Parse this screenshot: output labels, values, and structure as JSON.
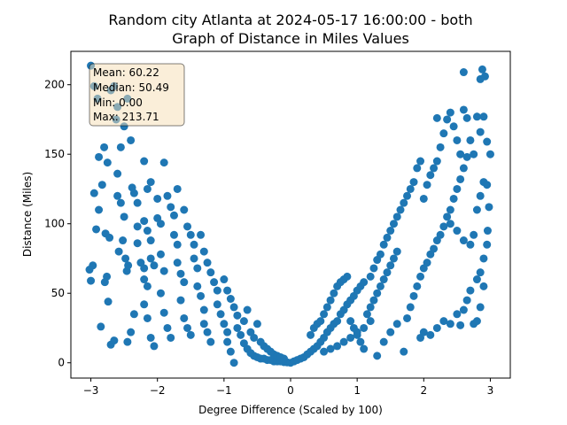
{
  "chart_data": {
    "type": "scatter",
    "title_line1": "Random city Atlanta at 2024-05-17 16:00:00  - both",
    "title_line2": "Graph of Distance in Miles Values",
    "xlabel": "Degree Difference (Scaled by 100)",
    "ylabel": "Distance (Miles)",
    "xlim": [
      -3.3,
      3.3
    ],
    "ylim": [
      -11,
      224
    ],
    "xticks": [
      -3,
      -2,
      -1,
      0,
      1,
      2,
      3
    ],
    "yticks": [
      0,
      50,
      100,
      150,
      200
    ],
    "grid": false,
    "color": "#1f77b4",
    "stats": {
      "mean": "Mean: 60.22",
      "median": "Median: 50.49",
      "min": "Min: 0.00",
      "max": "Max: 213.71"
    },
    "points": [
      [
        -3.0,
        213.7
      ],
      [
        -2.95,
        199
      ],
      [
        -2.9,
        190
      ],
      [
        -2.92,
        96
      ],
      [
        -2.97,
        70
      ],
      [
        -3.02,
        67
      ],
      [
        -3.0,
        59
      ],
      [
        -2.85,
        26
      ],
      [
        -2.8,
        155
      ],
      [
        -2.75,
        144
      ],
      [
        -2.7,
        196
      ],
      [
        -2.65,
        199
      ],
      [
        -2.6,
        184
      ],
      [
        -2.62,
        175
      ],
      [
        -2.88,
        148
      ],
      [
        -2.88,
        110
      ],
      [
        -2.95,
        122
      ],
      [
        -2.83,
        128
      ],
      [
        -2.78,
        93
      ],
      [
        -2.72,
        90
      ],
      [
        -2.76,
        62
      ],
      [
        -2.79,
        58
      ],
      [
        -2.74,
        44
      ],
      [
        -2.7,
        13
      ],
      [
        -2.65,
        16
      ],
      [
        -2.6,
        136
      ],
      [
        -2.55,
        155
      ],
      [
        -2.5,
        170
      ],
      [
        -2.45,
        190
      ],
      [
        -2.58,
        80
      ],
      [
        -2.52,
        88
      ],
      [
        -2.48,
        75
      ],
      [
        -2.46,
        66
      ],
      [
        -2.44,
        70
      ],
      [
        -2.6,
        120
      ],
      [
        -2.55,
        115
      ],
      [
        -2.5,
        105
      ],
      [
        -2.4,
        160
      ],
      [
        -2.35,
        122
      ],
      [
        -2.3,
        98
      ],
      [
        -2.3,
        86
      ],
      [
        -2.25,
        72
      ],
      [
        -2.2,
        68
      ],
      [
        -2.2,
        60
      ],
      [
        -2.35,
        35
      ],
      [
        -2.4,
        22
      ],
      [
        -2.45,
        15
      ],
      [
        -2.38,
        126
      ],
      [
        -2.3,
        115
      ],
      [
        -2.2,
        102
      ],
      [
        -2.15,
        95
      ],
      [
        -2.1,
        88
      ],
      [
        -2.1,
        75
      ],
      [
        -2.05,
        70
      ],
      [
        -2.15,
        55
      ],
      [
        -2.2,
        42
      ],
      [
        -2.15,
        32
      ],
      [
        -2.1,
        18
      ],
      [
        -2.05,
        12
      ],
      [
        -2.2,
        145
      ],
      [
        -2.15,
        125
      ],
      [
        -2.1,
        130
      ],
      [
        -2.0,
        118
      ],
      [
        -2.0,
        104
      ],
      [
        -1.95,
        100
      ],
      [
        -1.95,
        78
      ],
      [
        -1.9,
        66
      ],
      [
        -1.95,
        50
      ],
      [
        -1.9,
        36
      ],
      [
        -1.85,
        25
      ],
      [
        -1.8,
        18
      ],
      [
        -1.9,
        144
      ],
      [
        -1.85,
        120
      ],
      [
        -1.8,
        112
      ],
      [
        -1.75,
        106
      ],
      [
        -1.75,
        92
      ],
      [
        -1.7,
        85
      ],
      [
        -1.7,
        72
      ],
      [
        -1.65,
        64
      ],
      [
        -1.6,
        58
      ],
      [
        -1.65,
        45
      ],
      [
        -1.6,
        32
      ],
      [
        -1.55,
        25
      ],
      [
        -1.5,
        20
      ],
      [
        -1.7,
        125
      ],
      [
        -1.6,
        110
      ],
      [
        -1.55,
        98
      ],
      [
        -1.5,
        92
      ],
      [
        -1.45,
        85
      ],
      [
        -1.45,
        75
      ],
      [
        -1.4,
        68
      ],
      [
        -1.4,
        55
      ],
      [
        -1.35,
        48
      ],
      [
        -1.3,
        38
      ],
      [
        -1.3,
        28
      ],
      [
        -1.25,
        22
      ],
      [
        -1.2,
        15
      ],
      [
        -1.35,
        92
      ],
      [
        -1.3,
        80
      ],
      [
        -1.25,
        72
      ],
      [
        -1.2,
        65
      ],
      [
        -1.15,
        58
      ],
      [
        -1.1,
        52
      ],
      [
        -1.1,
        42
      ],
      [
        -1.05,
        35
      ],
      [
        -1.0,
        28
      ],
      [
        -0.95,
        22
      ],
      [
        -0.95,
        15
      ],
      [
        -0.9,
        8
      ],
      [
        -1.0,
        60
      ],
      [
        -0.95,
        52
      ],
      [
        -0.9,
        46
      ],
      [
        -0.85,
        40
      ],
      [
        -0.8,
        34
      ],
      [
        -0.8,
        25
      ],
      [
        -0.75,
        20
      ],
      [
        -0.7,
        14
      ],
      [
        -0.65,
        10
      ],
      [
        -0.6,
        7
      ],
      [
        -0.55,
        5
      ],
      [
        -0.5,
        4
      ],
      [
        -0.45,
        3
      ],
      [
        -0.4,
        3
      ],
      [
        -0.35,
        2
      ],
      [
        -0.3,
        2
      ],
      [
        -0.25,
        1
      ],
      [
        -0.2,
        1
      ],
      [
        -0.15,
        1
      ],
      [
        -0.1,
        0.5
      ],
      [
        -0.05,
        0.3
      ],
      [
        -0.85,
        0
      ],
      [
        -0.7,
        30
      ],
      [
        -0.65,
        38
      ],
      [
        -0.6,
        22
      ],
      [
        -0.55,
        18
      ],
      [
        -0.5,
        28
      ],
      [
        -0.45,
        15
      ],
      [
        -0.4,
        12
      ],
      [
        -0.35,
        10
      ],
      [
        -0.3,
        8
      ],
      [
        -0.25,
        6
      ],
      [
        -0.2,
        5
      ],
      [
        -0.15,
        4
      ],
      [
        -0.1,
        3
      ],
      [
        0.0,
        0
      ],
      [
        0.05,
        1
      ],
      [
        0.1,
        2
      ],
      [
        0.15,
        3
      ],
      [
        0.2,
        4
      ],
      [
        0.25,
        6
      ],
      [
        0.3,
        8
      ],
      [
        0.35,
        10
      ],
      [
        0.4,
        12
      ],
      [
        0.45,
        15
      ],
      [
        0.5,
        18
      ],
      [
        0.55,
        22
      ],
      [
        0.6,
        25
      ],
      [
        0.65,
        28
      ],
      [
        0.7,
        30
      ],
      [
        0.75,
        35
      ],
      [
        0.8,
        38
      ],
      [
        0.85,
        42
      ],
      [
        0.9,
        45
      ],
      [
        0.95,
        48
      ],
      [
        1.0,
        52
      ],
      [
        1.05,
        55
      ],
      [
        1.1,
        58
      ],
      [
        0.3,
        20
      ],
      [
        0.35,
        25
      ],
      [
        0.4,
        28
      ],
      [
        0.45,
        30
      ],
      [
        0.5,
        35
      ],
      [
        0.55,
        40
      ],
      [
        0.6,
        45
      ],
      [
        0.65,
        50
      ],
      [
        0.7,
        55
      ],
      [
        0.75,
        58
      ],
      [
        0.8,
        60
      ],
      [
        0.85,
        62
      ],
      [
        0.9,
        30
      ],
      [
        0.95,
        25
      ],
      [
        1.0,
        20
      ],
      [
        1.05,
        15
      ],
      [
        1.1,
        10
      ],
      [
        0.5,
        8
      ],
      [
        0.6,
        10
      ],
      [
        0.7,
        12
      ],
      [
        0.8,
        15
      ],
      [
        0.9,
        18
      ],
      [
        1.0,
        22
      ],
      [
        1.1,
        25
      ],
      [
        1.15,
        35
      ],
      [
        1.2,
        40
      ],
      [
        1.25,
        45
      ],
      [
        1.3,
        50
      ],
      [
        1.35,
        55
      ],
      [
        1.4,
        60
      ],
      [
        1.45,
        65
      ],
      [
        1.5,
        70
      ],
      [
        1.55,
        75
      ],
      [
        1.6,
        80
      ],
      [
        1.2,
        62
      ],
      [
        1.25,
        68
      ],
      [
        1.3,
        74
      ],
      [
        1.35,
        78
      ],
      [
        1.4,
        85
      ],
      [
        1.45,
        90
      ],
      [
        1.5,
        95
      ],
      [
        1.55,
        100
      ],
      [
        1.6,
        105
      ],
      [
        1.65,
        110
      ],
      [
        1.7,
        115
      ],
      [
        1.75,
        120
      ],
      [
        1.8,
        125
      ],
      [
        1.85,
        130
      ],
      [
        1.9,
        140
      ],
      [
        1.95,
        145
      ],
      [
        1.2,
        30
      ],
      [
        1.3,
        5
      ],
      [
        1.4,
        15
      ],
      [
        1.5,
        22
      ],
      [
        1.6,
        28
      ],
      [
        1.7,
        8
      ],
      [
        1.75,
        32
      ],
      [
        1.8,
        40
      ],
      [
        1.85,
        48
      ],
      [
        1.9,
        55
      ],
      [
        1.95,
        62
      ],
      [
        2.0,
        68
      ],
      [
        2.05,
        72
      ],
      [
        2.1,
        78
      ],
      [
        2.15,
        82
      ],
      [
        2.2,
        88
      ],
      [
        2.25,
        92
      ],
      [
        2.3,
        98
      ],
      [
        2.35,
        105
      ],
      [
        2.4,
        110
      ],
      [
        2.45,
        118
      ],
      [
        2.5,
        125
      ],
      [
        2.55,
        132
      ],
      [
        2.6,
        140
      ],
      [
        2.65,
        148
      ],
      [
        1.95,
        18
      ],
      [
        2.0,
        22
      ],
      [
        2.1,
        20
      ],
      [
        2.2,
        25
      ],
      [
        2.3,
        30
      ],
      [
        2.4,
        28
      ],
      [
        2.5,
        35
      ],
      [
        2.55,
        27
      ],
      [
        2.6,
        38
      ],
      [
        2.65,
        45
      ],
      [
        2.7,
        52
      ],
      [
        2.75,
        28
      ],
      [
        2.8,
        60
      ],
      [
        2.85,
        65
      ],
      [
        2.9,
        75
      ],
      [
        2.95,
        85
      ],
      [
        2.2,
        145
      ],
      [
        2.25,
        155
      ],
      [
        2.3,
        165
      ],
      [
        2.35,
        175
      ],
      [
        2.4,
        180
      ],
      [
        2.45,
        170
      ],
      [
        2.5,
        160
      ],
      [
        2.55,
        150
      ],
      [
        2.6,
        182
      ],
      [
        2.65,
        176
      ],
      [
        2.7,
        160
      ],
      [
        2.75,
        150
      ],
      [
        2.8,
        177
      ],
      [
        2.85,
        166
      ],
      [
        2.9,
        177
      ],
      [
        2.95,
        159
      ],
      [
        2.6,
        209
      ],
      [
        2.85,
        204
      ],
      [
        2.88,
        211
      ],
      [
        2.92,
        206
      ],
      [
        2.2,
        176
      ],
      [
        2.0,
        118
      ],
      [
        2.05,
        128
      ],
      [
        2.1,
        135
      ],
      [
        2.15,
        140
      ],
      [
        2.4,
        100
      ],
      [
        2.5,
        95
      ],
      [
        2.6,
        88
      ],
      [
        2.7,
        85
      ],
      [
        2.75,
        92
      ],
      [
        2.8,
        110
      ],
      [
        2.85,
        120
      ],
      [
        2.9,
        130
      ],
      [
        2.95,
        128
      ],
      [
        3.0,
        150
      ],
      [
        2.98,
        112
      ],
      [
        2.96,
        95
      ],
      [
        2.9,
        55
      ],
      [
        2.85,
        40
      ],
      [
        2.8,
        30
      ]
    ]
  }
}
